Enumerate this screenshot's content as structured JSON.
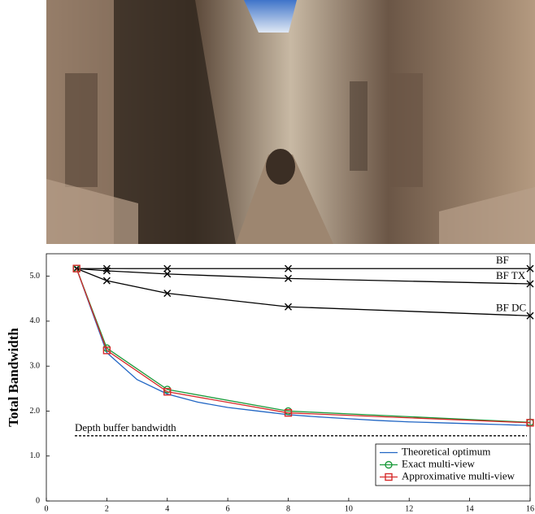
{
  "chart_data": {
    "type": "line",
    "ylabel": "Total Bandwidth",
    "xlim": [
      0,
      16
    ],
    "xticks": [
      0,
      2,
      4,
      6,
      8,
      10,
      12,
      14,
      16
    ],
    "ylim": [
      0,
      5.5
    ],
    "yticks": [
      0,
      {
        "value": 1,
        "label": "1.0"
      },
      {
        "value": 2,
        "label": "2.0"
      },
      {
        "value": 3,
        "label": "3.0"
      },
      {
        "value": 4,
        "label": "4.0"
      },
      {
        "value": 5,
        "label": "5.0"
      }
    ],
    "series": [
      {
        "name": "BF",
        "color": "#000000",
        "marker": "x",
        "x": [
          1,
          2,
          4,
          8,
          16
        ],
        "values": [
          5.17,
          5.17,
          5.17,
          5.17,
          5.17
        ]
      },
      {
        "name": "BF TX",
        "color": "#000000",
        "marker": "x",
        "x": [
          1,
          2,
          4,
          8,
          16
        ],
        "values": [
          5.17,
          5.12,
          5.05,
          4.95,
          4.83
        ]
      },
      {
        "name": "BF DC",
        "color": "#000000",
        "marker": "x",
        "x": [
          1,
          2,
          4,
          8,
          16
        ],
        "values": [
          5.17,
          4.9,
          4.62,
          4.32,
          4.12
        ]
      },
      {
        "name": "Theoretical optimum",
        "color": "#2166c4",
        "marker": "none",
        "x": [
          1,
          2,
          3,
          4,
          5,
          6,
          7,
          8,
          9,
          10,
          11,
          12,
          13,
          14,
          15,
          16
        ],
        "values": [
          5.17,
          3.3,
          2.7,
          2.38,
          2.2,
          2.08,
          2.0,
          1.92,
          1.87,
          1.83,
          1.79,
          1.76,
          1.74,
          1.72,
          1.7,
          1.68
        ]
      },
      {
        "name": "Exact multi-view",
        "color": "#1a9a3a",
        "marker": "circle",
        "x": [
          1,
          2,
          4,
          8,
          16
        ],
        "values": [
          5.17,
          3.4,
          2.48,
          2.0,
          1.75
        ]
      },
      {
        "name": "Approximative multi-view",
        "color": "#d62b2b",
        "marker": "square",
        "x": [
          1,
          2,
          4,
          8,
          16
        ],
        "values": [
          5.17,
          3.35,
          2.43,
          1.96,
          1.74
        ]
      }
    ],
    "reference_line": {
      "label": "Depth buffer bandwidth",
      "value": 1.45
    },
    "legend": "lower right"
  }
}
